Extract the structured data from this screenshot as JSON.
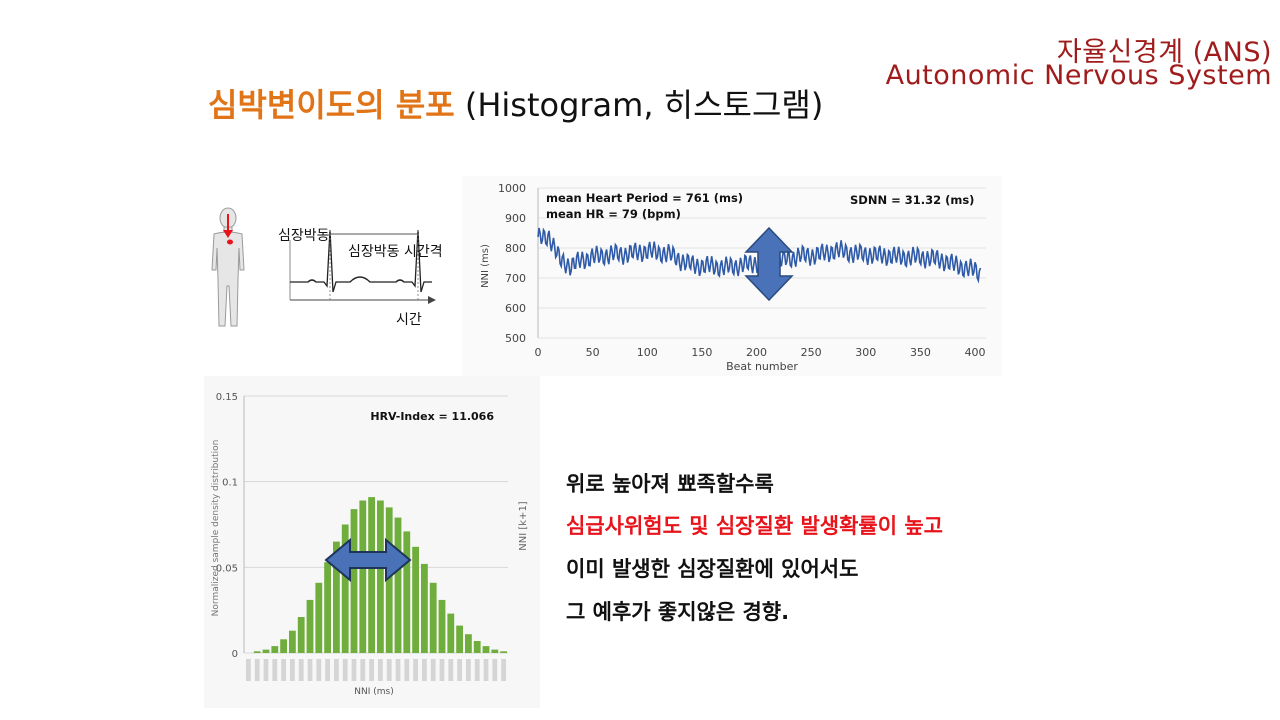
{
  "header": {
    "brand_ko": "자율신경계 (ANS)",
    "brand_en": "Autonomic Nervous System"
  },
  "title": {
    "main": "심박변이도의 분포",
    "sub": " (Histogram, 히스토그램)"
  },
  "ecg_diagram": {
    "label_beat": "심장박동",
    "label_interval": "심장박동 시간격",
    "label_time": "시간"
  },
  "line_chart": {
    "chart_data": {
      "type": "line",
      "xlabel": "Beat number",
      "ylabel": "NNI (ms)",
      "xlim": [
        0,
        410
      ],
      "ylim": [
        500,
        1000
      ],
      "xticks": [
        0,
        50,
        100,
        150,
        200,
        250,
        300,
        350,
        400
      ],
      "yticks": [
        500,
        600,
        700,
        800,
        900,
        1000
      ],
      "annotation_left_1": "mean Heart Period = 761 (ms)",
      "annotation_left_2": "mean HR  = 79 (bpm)",
      "annotation_right": "SDNN = 31.32 (ms)",
      "series_color": "#2e5aa8",
      "x": [
        0,
        10,
        20,
        30,
        40,
        50,
        60,
        70,
        80,
        90,
        100,
        110,
        120,
        130,
        140,
        150,
        160,
        170,
        180,
        190,
        200,
        210,
        220,
        230,
        240,
        250,
        260,
        270,
        280,
        290,
        300,
        310,
        320,
        330,
        340,
        350,
        360,
        370,
        380,
        390,
        400,
        405
      ],
      "y": [
        830,
        840,
        760,
        740,
        760,
        770,
        775,
        780,
        780,
        785,
        790,
        785,
        780,
        760,
        745,
        740,
        740,
        735,
        740,
        745,
        750,
        760,
        760,
        765,
        775,
        775,
        780,
        790,
        790,
        780,
        780,
        775,
        775,
        770,
        770,
        770,
        765,
        760,
        745,
        735,
        725,
        715
      ]
    }
  },
  "histogram": {
    "chart_data": {
      "type": "bar",
      "xlabel": "NNI (ms)",
      "ylabel": "Normalized sample density distribution",
      "right_label": "NNI [k+1]",
      "annotation": "HRV-Index = 11.066",
      "ylim": [
        0,
        0.15
      ],
      "yticks": [
        0,
        0.05,
        0.1,
        0.15
      ],
      "ytick_labels": [
        "0",
        "0.05",
        "0.1",
        "0.15"
      ],
      "bar_color": "#6fae3d",
      "values": [
        0.0,
        0.001,
        0.002,
        0.004,
        0.008,
        0.013,
        0.021,
        0.031,
        0.041,
        0.053,
        0.065,
        0.075,
        0.084,
        0.089,
        0.091,
        0.089,
        0.085,
        0.079,
        0.071,
        0.062,
        0.052,
        0.041,
        0.031,
        0.023,
        0.016,
        0.011,
        0.007,
        0.004,
        0.002,
        0.001
      ]
    }
  },
  "text_block": {
    "line1": "위로 높아져 뾰족할수록",
    "line2": "심급사위험도 및 심장질환 발생확률이 높고",
    "line3": "이미 발생한 심장질환에 있어서도",
    "line4": "그 예후가 좋지않은 경향."
  }
}
